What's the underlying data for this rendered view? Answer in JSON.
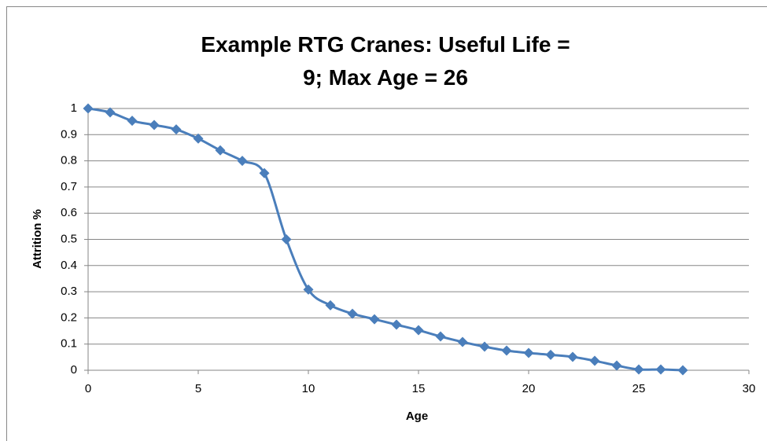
{
  "chart_data": {
    "type": "line",
    "title": "Example RTG Cranes: Useful Life = 9; Max Age = 26",
    "x_label": "Age",
    "y_label": "Attrition %",
    "x": [
      0,
      1,
      2,
      3,
      4,
      5,
      6,
      7,
      8,
      9,
      10,
      11,
      12,
      13,
      14,
      15,
      16,
      17,
      18,
      19,
      20,
      21,
      22,
      23,
      24,
      25,
      26,
      27
    ],
    "series": [
      {
        "color": "#4a7ebb",
        "values": [
          1,
          0.985,
          0.953,
          0.937,
          0.92,
          0.885,
          0.84,
          0.8,
          0.753,
          0.5,
          0.308,
          0.248,
          0.216,
          0.195,
          0.174,
          0.153,
          0.129,
          0.108,
          0.09,
          0.075,
          0.066,
          0.059,
          0.051,
          0.036,
          0.018,
          0.003,
          0.003,
          0
        ]
      }
    ],
    "xlim": [
      0,
      30
    ],
    "xticks": [
      0,
      5,
      10,
      15,
      20,
      25,
      30
    ],
    "ylim": [
      0,
      1
    ],
    "yticks": [
      0,
      0.1,
      0.2,
      0.3,
      0.4,
      0.5,
      0.6,
      0.7,
      0.8,
      0.9,
      1
    ],
    "grid": true,
    "smooth": true,
    "marker": "diamond"
  }
}
